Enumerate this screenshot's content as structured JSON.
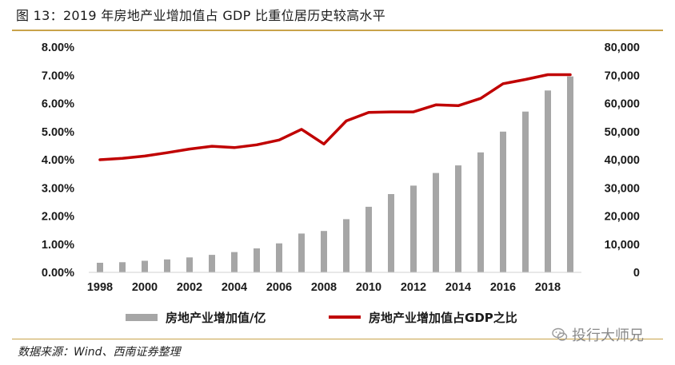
{
  "figure_title": "图 13：2019 年房地产业增加值占 GDP 比重位居历史较高水平",
  "source_text": "数据来源：Wind、西南证券整理",
  "watermark_text": "投行大师兄",
  "colors": {
    "bar": "#a6a6a6",
    "line": "#c00000",
    "rule": "#c9a34a"
  },
  "chart_data": {
    "type": "bar+line",
    "x": [
      1998,
      1999,
      2000,
      2001,
      2002,
      2003,
      2004,
      2005,
      2006,
      2007,
      2008,
      2009,
      2010,
      2011,
      2012,
      2013,
      2014,
      2015,
      2016,
      2017,
      2018,
      2019
    ],
    "x_tick_labels": [
      "1998",
      "2000",
      "2002",
      "2004",
      "2006",
      "2008",
      "2010",
      "2012",
      "2014",
      "2016",
      "2018"
    ],
    "left_axis": {
      "range": [
        0,
        0.08
      ],
      "tick_labels": [
        "0.00%",
        "1.00%",
        "2.00%",
        "3.00%",
        "4.00%",
        "5.00%",
        "6.00%",
        "7.00%",
        "8.00%"
      ]
    },
    "right_axis": {
      "range": [
        0,
        80000
      ],
      "tick_labels": [
        "0",
        "10,000",
        "20,000",
        "30,000",
        "40,000",
        "50,000",
        "60,000",
        "70,000",
        "80,000"
      ]
    },
    "grid": false,
    "legend_position": "bottom",
    "series": [
      {
        "name": "房地产业增加值/亿",
        "type": "bar",
        "axis": "right",
        "values": [
          3400,
          3600,
          4100,
          4600,
          5300,
          6200,
          7200,
          8500,
          10300,
          13800,
          14700,
          18900,
          23300,
          27800,
          30800,
          35300,
          38000,
          42600,
          50000,
          57100,
          64600,
          69600
        ]
      },
      {
        "name": "房地产业增加值占GDP之比",
        "type": "line",
        "axis": "left",
        "values": [
          0.04,
          0.0405,
          0.0413,
          0.0425,
          0.0438,
          0.0448,
          0.0443,
          0.0453,
          0.047,
          0.0508,
          0.0456,
          0.0538,
          0.0568,
          0.057,
          0.057,
          0.0595,
          0.0592,
          0.0618,
          0.067,
          0.0685,
          0.0702,
          0.0702
        ]
      }
    ]
  }
}
